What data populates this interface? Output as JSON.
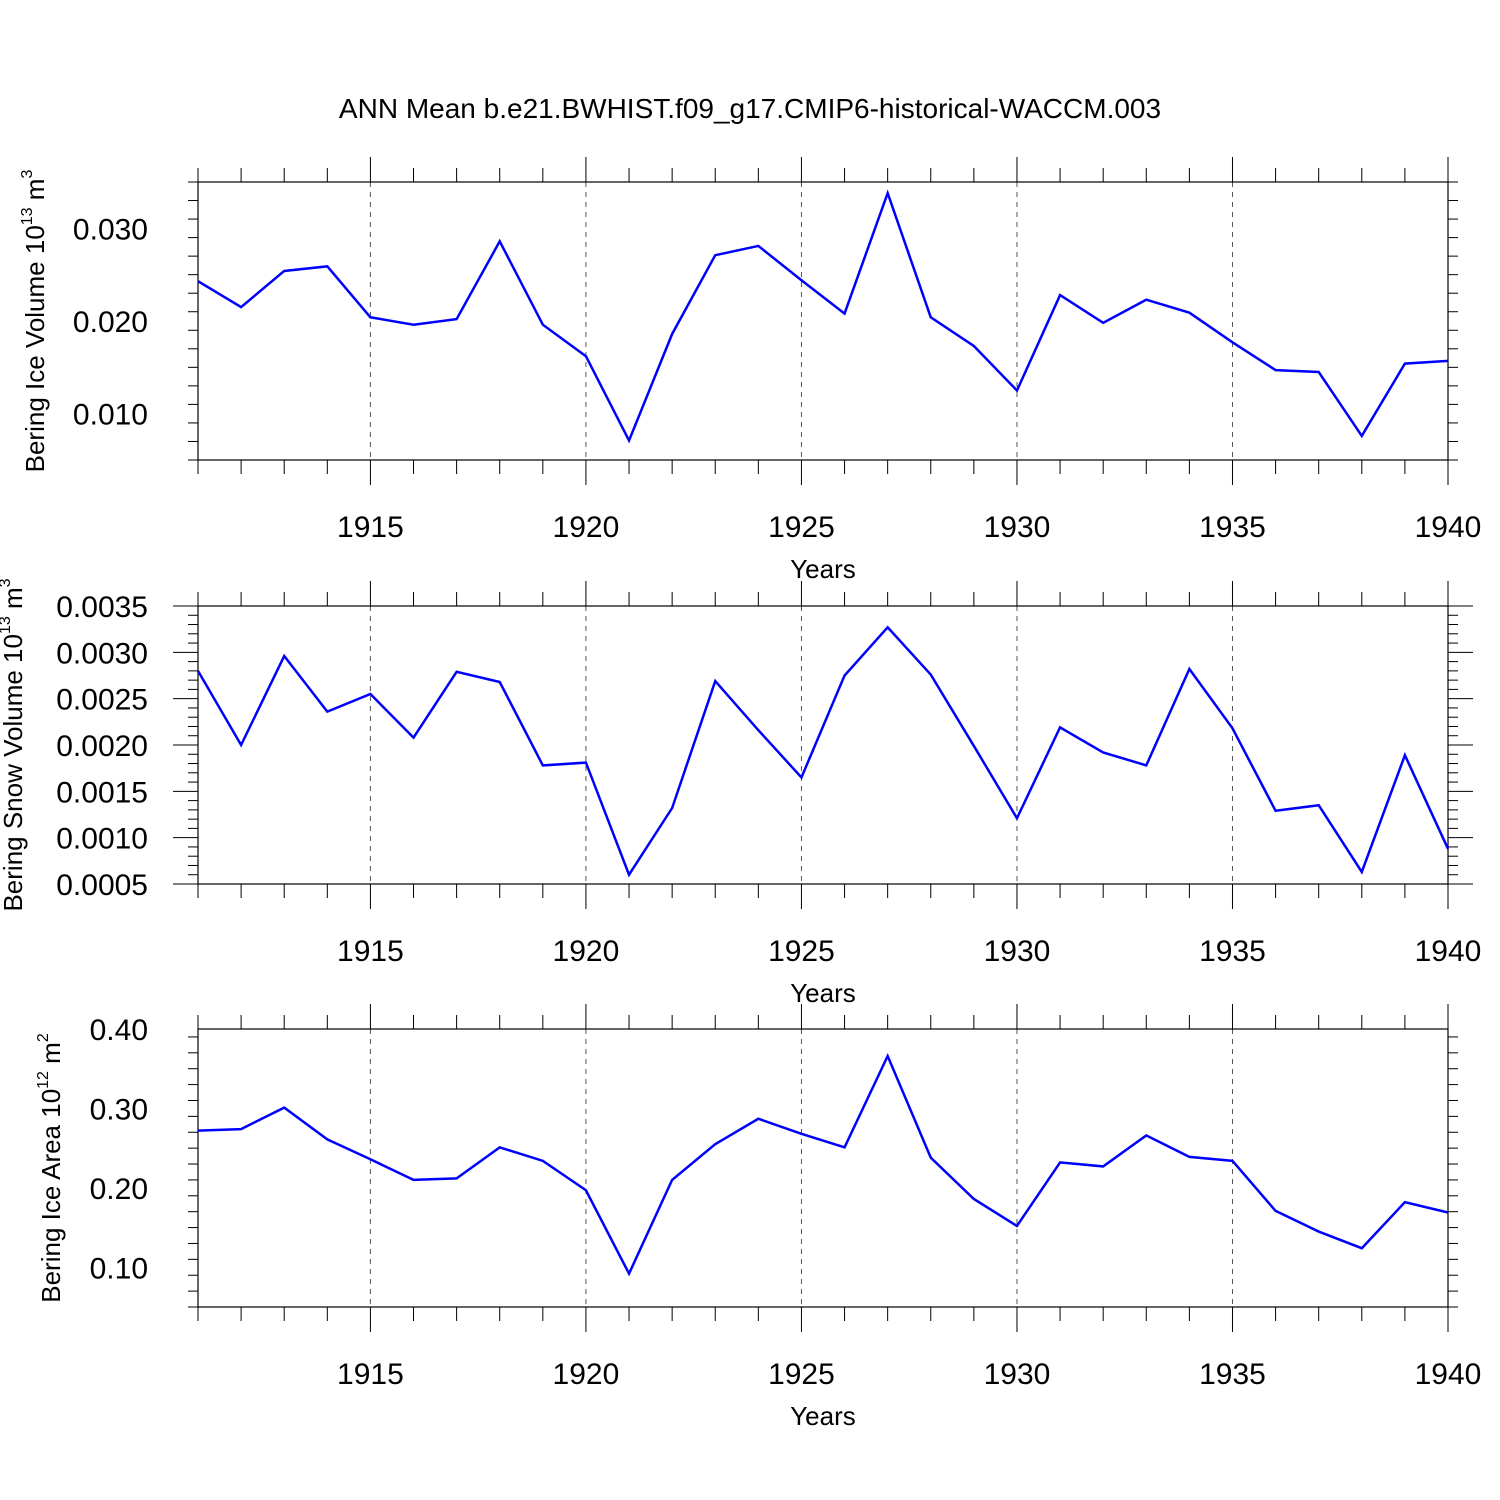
{
  "figure": {
    "title": "ANN Mean b.e21.BWHIST.f09_g17.CMIP6-historical-WACCM.003"
  },
  "colors": {
    "series": "#0000ff",
    "axis": "#000000",
    "grid": "#555555"
  },
  "chart_data": [
    {
      "type": "line",
      "xlabel": "Years",
      "ylabel": {
        "text": "Bering Ice Volume 10",
        "sup1": "13",
        "mid": " m",
        "sup2": "3"
      },
      "xlim": [
        1911,
        1940
      ],
      "ylim": [
        0.005,
        0.035
      ],
      "x_ticks": [
        1915,
        1920,
        1925,
        1930,
        1935,
        1940
      ],
      "y_ticks": [
        0.01,
        0.02,
        0.03
      ],
      "y_tick_labels": [
        "0.010",
        "0.020",
        "0.030"
      ],
      "grid": "vertical dashed at major x ticks",
      "x": [
        1911,
        1912,
        1913,
        1914,
        1915,
        1916,
        1917,
        1918,
        1919,
        1920,
        1921,
        1922,
        1923,
        1924,
        1925,
        1926,
        1927,
        1928,
        1929,
        1930,
        1931,
        1932,
        1933,
        1934,
        1935,
        1936,
        1937,
        1938,
        1939,
        1940
      ],
      "series": [
        {
          "values": [
            0.0243,
            0.0215,
            0.0254,
            0.0259,
            0.0204,
            0.0196,
            0.0202,
            0.0286,
            0.0196,
            0.0162,
            0.0071,
            0.0186,
            0.0271,
            0.0281,
            0.0244,
            0.0208,
            0.0338,
            0.0204,
            0.0173,
            0.0125,
            0.0228,
            0.0198,
            0.0223,
            0.0209,
            0.0177,
            0.0147,
            0.0145,
            0.0076,
            0.0154,
            0.0157
          ]
        }
      ]
    },
    {
      "type": "line",
      "xlabel": "Years",
      "ylabel": {
        "text": "Bering Snow Volume 10",
        "sup1": "13",
        "mid": " m",
        "sup2": "3"
      },
      "xlim": [
        1911,
        1940
      ],
      "ylim": [
        0.0005,
        0.0035
      ],
      "x_ticks": [
        1915,
        1920,
        1925,
        1930,
        1935,
        1940
      ],
      "y_ticks": [
        0.0005,
        0.001,
        0.0015,
        0.002,
        0.0025,
        0.003,
        0.0035
      ],
      "y_tick_labels": [
        "0.0005",
        "0.0010",
        "0.0015",
        "0.0020",
        "0.0025",
        "0.0030",
        "0.0035"
      ],
      "grid": "vertical dashed at major x ticks",
      "x": [
        1911,
        1912,
        1913,
        1914,
        1915,
        1916,
        1917,
        1918,
        1919,
        1920,
        1921,
        1922,
        1923,
        1924,
        1925,
        1926,
        1927,
        1928,
        1929,
        1930,
        1931,
        1932,
        1933,
        1934,
        1935,
        1936,
        1937,
        1938,
        1939,
        1940
      ],
      "series": [
        {
          "values": [
            0.0028,
            0.002,
            0.00296,
            0.00236,
            0.00255,
            0.00208,
            0.00279,
            0.00268,
            0.00178,
            0.00181,
            0.0006,
            0.00132,
            0.00269,
            0.00216,
            0.00165,
            0.00275,
            0.00327,
            0.00276,
            0.00199,
            0.00121,
            0.00219,
            0.00192,
            0.00178,
            0.00282,
            0.00218,
            0.00129,
            0.00135,
            0.00063,
            0.00189,
            0.00088
          ]
        }
      ]
    },
    {
      "type": "line",
      "xlabel": "Years",
      "ylabel": {
        "text": "Bering Ice Area 10",
        "sup1": "12",
        "mid": " m",
        "sup2": "2"
      },
      "xlim": [
        1911,
        1940
      ],
      "ylim": [
        0.05,
        0.4
      ],
      "x_ticks": [
        1915,
        1920,
        1925,
        1930,
        1935,
        1940
      ],
      "y_ticks": [
        0.1,
        0.2,
        0.3,
        0.4
      ],
      "y_tick_labels": [
        "0.10",
        "0.20",
        "0.30",
        "0.40"
      ],
      "grid": "vertical dashed at major x ticks",
      "x": [
        1911,
        1912,
        1913,
        1914,
        1915,
        1916,
        1917,
        1918,
        1919,
        1920,
        1921,
        1922,
        1923,
        1924,
        1925,
        1926,
        1927,
        1928,
        1929,
        1930,
        1931,
        1932,
        1933,
        1934,
        1935,
        1936,
        1937,
        1938,
        1939,
        1940
      ],
      "series": [
        {
          "values": [
            0.272,
            0.274,
            0.301,
            0.261,
            0.236,
            0.21,
            0.212,
            0.251,
            0.234,
            0.197,
            0.092,
            0.21,
            0.255,
            0.287,
            0.268,
            0.251,
            0.366,
            0.238,
            0.186,
            0.152,
            0.232,
            0.227,
            0.266,
            0.239,
            0.234,
            0.171,
            0.145,
            0.124,
            0.182,
            0.169
          ]
        }
      ]
    }
  ]
}
